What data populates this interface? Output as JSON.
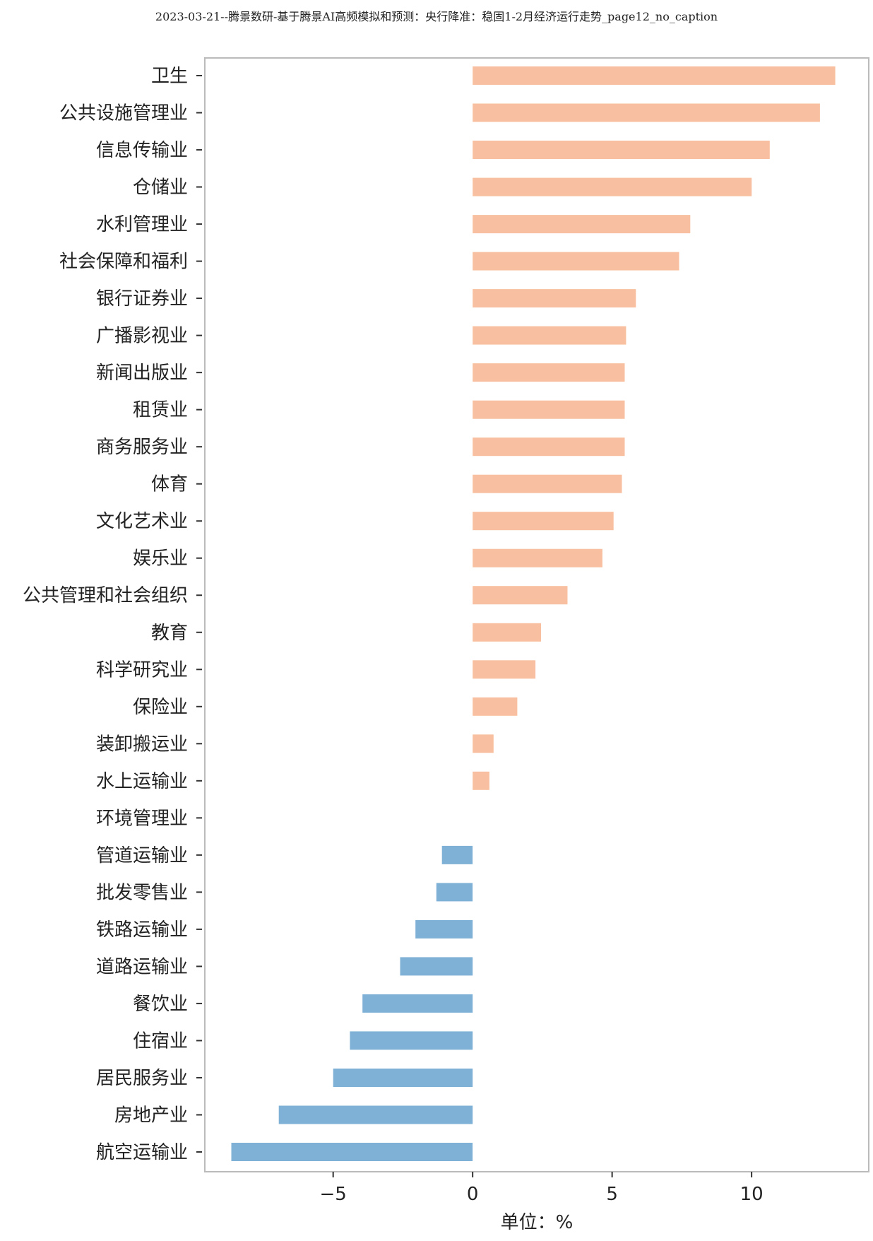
{
  "page": {
    "title": "2023-03-21--腾景数研-基于腾景AI高频模拟和预测：央行降准：稳固1-2月经济运行走势_page12_no_caption"
  },
  "chart_data": {
    "type": "bar",
    "orientation": "horizontal",
    "categories": [
      "卫生",
      "公共设施管理业",
      "信息传输业",
      "仓储业",
      "水利管理业",
      "社会保障和福利",
      "银行证券业",
      "广播影视业",
      "新闻出版业",
      "租赁业",
      "商务服务业",
      "体育",
      "文化艺术业",
      "娱乐业",
      "公共管理和社会组织",
      "教育",
      "科学研究业",
      "保险业",
      "装卸搬运业",
      "水上运输业",
      "环境管理业",
      "管道运输业",
      "批发零售业",
      "铁路运输业",
      "道路运输业",
      "餐饮业",
      "住宿业",
      "居民服务业",
      "房地产业",
      "航空运输业"
    ],
    "values": [
      13.0,
      12.45,
      10.65,
      10.0,
      7.8,
      7.4,
      5.85,
      5.5,
      5.45,
      5.45,
      5.45,
      5.35,
      5.05,
      4.65,
      3.4,
      2.45,
      2.25,
      1.6,
      0.75,
      0.6,
      0.0,
      -1.1,
      -1.3,
      -2.05,
      -2.6,
      -3.95,
      -4.4,
      -5.0,
      -6.95,
      -8.65
    ],
    "xlabel": "单位：%",
    "ylabel": "",
    "xlim": [
      -9.6,
      14.2
    ],
    "xticks": [
      -5,
      0,
      5,
      10
    ],
    "grid": false,
    "legend": "none",
    "colors": {
      "positive": "#f8c0a0",
      "negative": "#7fb0d6",
      "frame": "#bbbbbb"
    }
  }
}
